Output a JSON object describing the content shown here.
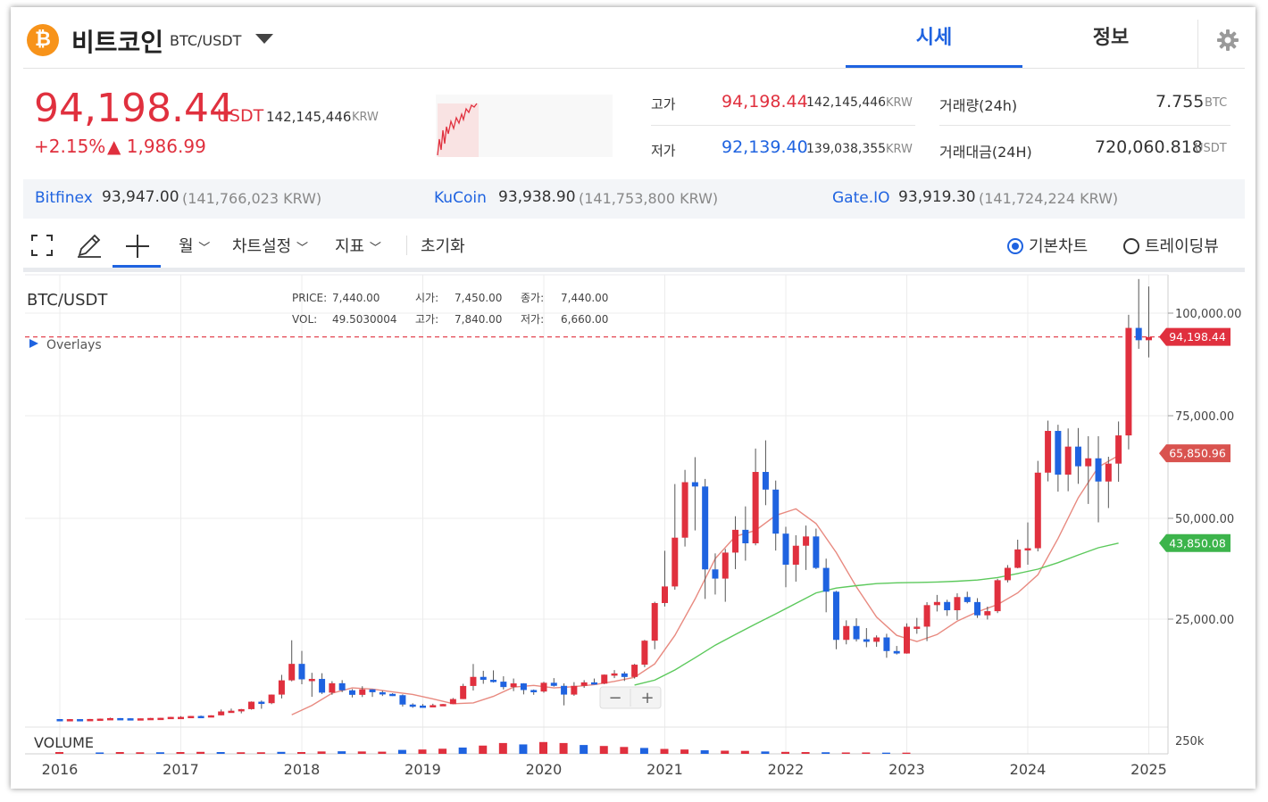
{
  "header": {
    "coin_name": "비트코인",
    "pair": "BTC/USDT",
    "tabs": [
      {
        "label": "시세"
      },
      {
        "label": "정보"
      }
    ]
  },
  "price": {
    "current": "94,198.44",
    "unit": "USDT",
    "krw": "142,145,446",
    "krw_unit": "KRW",
    "change_pct": "+2.15%",
    "change_abs": "▲ 1,986.99"
  },
  "stats": {
    "high_label": "고가",
    "high_value": "94,198.44",
    "high_krw": "142,145,446",
    "low_label": "저가",
    "low_value": "92,139.40",
    "low_krw": "139,038,355",
    "krw_unit": "KRW",
    "volume_label": "거래량(24h)",
    "volume_value": "7.755",
    "volume_unit": "BTC",
    "turnover_label": "거래대금(24H)",
    "turnover_value": "720,060.818",
    "turnover_unit": "USDT"
  },
  "exchanges": [
    {
      "name": "Bitfinex",
      "price": "93,947.00",
      "krw": "(141,766,023 KRW)"
    },
    {
      "name": "KuCoin",
      "price": "93,938.90",
      "krw": "(141,753,800 KRW)"
    },
    {
      "name": "Gate.IO",
      "price": "93,919.30",
      "krw": "(141,724,224 KRW)"
    }
  ],
  "toolbar": {
    "interval": "월",
    "chart_settings": "차트설정",
    "indicators": "지표",
    "reset": "초기화",
    "basic_chart": "기본차트",
    "trading_view": "트레이딩뷰",
    "zoom_out": "−",
    "zoom_in": "+"
  },
  "chart_data": {
    "type": "candlestick",
    "title": "BTC/USDT",
    "overlays_label": "Overlays",
    "volume_label": "VOLUME",
    "info": {
      "price_label": "PRICE:",
      "price": "7,440.00",
      "vol_label": "VOL:",
      "vol": "49.5030004",
      "open_label": "시가:",
      "open": "7,450.00",
      "close_label": "종가:",
      "close": "7,440.00",
      "high_label": "고가:",
      "high": "7,840.00",
      "low_label": "저가:",
      "low": "6,660.00"
    },
    "x_ticks": [
      "2016",
      "2017",
      "2018",
      "2019",
      "2020",
      "2021",
      "2022",
      "2023",
      "2024",
      "2025"
    ],
    "y_ticks": [
      "100,000.00",
      "75,000.00",
      "50,000.00",
      "25,000.00"
    ],
    "y_tick_values": [
      100000,
      75000,
      50000,
      25000
    ],
    "volume_tick": "250k",
    "markers": [
      {
        "label": "94,198.44",
        "value": 94198.44,
        "color": "#e0303e"
      },
      {
        "label": "65,850.96",
        "value": 65850.96,
        "color": "#d9534f"
      },
      {
        "label": "43,850.08",
        "value": 43850.08,
        "color": "#3cb44b"
      }
    ],
    "ma_colors": {
      "short": "#e88a80",
      "long": "#5cc95c"
    },
    "up_color": "#e0303e",
    "down_color": "#1f63e0",
    "year_start_month_offset": 0,
    "start": "2016-01",
    "candles": [
      [
        430,
        370,
        440,
        360
      ],
      [
        370,
        420,
        440,
        350
      ],
      [
        420,
        415,
        440,
        400
      ],
      [
        415,
        450,
        460,
        420
      ],
      [
        450,
        530,
        560,
        440
      ],
      [
        530,
        670,
        780,
        520
      ],
      [
        670,
        625,
        680,
        590
      ],
      [
        625,
        575,
        630,
        550
      ],
      [
        575,
        610,
        620,
        590
      ],
      [
        610,
        700,
        720,
        600
      ],
      [
        700,
        740,
        750,
        680
      ],
      [
        740,
        960,
        980,
        730
      ],
      [
        960,
        965,
        1150,
        750
      ],
      [
        965,
        1190,
        1200,
        940
      ],
      [
        1190,
        1080,
        1290,
        890
      ],
      [
        1080,
        1350,
        1360,
        1060
      ],
      [
        1350,
        2300,
        2780,
        1340
      ],
      [
        2300,
        2480,
        3000,
        2000
      ],
      [
        2480,
        2870,
        2920,
        1840
      ],
      [
        2870,
        4700,
        4770,
        2750
      ],
      [
        4700,
        4340,
        5000,
        2970
      ],
      [
        4340,
        6450,
        6480,
        4100
      ],
      [
        6450,
        9950,
        11300,
        5500
      ],
      [
        9950,
        14000,
        19800,
        9700
      ],
      [
        14000,
        10200,
        17200,
        9000
      ],
      [
        10200,
        10300,
        11800,
        5900
      ],
      [
        10300,
        6930,
        11700,
        6600
      ],
      [
        6930,
        9240,
        9750,
        6400
      ],
      [
        9240,
        7500,
        10000,
        7060
      ],
      [
        7500,
        6390,
        7800,
        5750
      ],
      [
        6390,
        7730,
        8500,
        5850
      ],
      [
        7730,
        7030,
        7750,
        5880
      ],
      [
        7030,
        6630,
        7400,
        6100
      ],
      [
        6630,
        6300,
        6800,
        6100
      ],
      [
        6300,
        4000,
        6500,
        3500
      ],
      [
        4000,
        3740,
        4300,
        3200
      ],
      [
        3740,
        3440,
        4100,
        3350
      ],
      [
        3440,
        3850,
        4200,
        3380
      ],
      [
        3850,
        4110,
        4150,
        3710
      ],
      [
        4110,
        5350,
        5600,
        4100
      ],
      [
        5350,
        8570,
        9100,
        5350
      ],
      [
        8570,
        10800,
        13970,
        7450
      ],
      [
        10800,
        10080,
        12300,
        9100
      ],
      [
        10080,
        9630,
        12400,
        9400
      ],
      [
        9630,
        8300,
        10950,
        7700
      ],
      [
        8300,
        9200,
        10400,
        7300
      ],
      [
        9200,
        7570,
        9250,
        6500
      ],
      [
        7570,
        7200,
        7700,
        6400
      ],
      [
        7200,
        9350,
        9600,
        6900
      ],
      [
        9350,
        8600,
        10500,
        8400
      ],
      [
        8600,
        6450,
        9200,
        3800
      ],
      [
        6450,
        8600,
        9500,
        6150
      ],
      [
        8600,
        9450,
        10000,
        8100
      ],
      [
        9450,
        9140,
        10400,
        8900
      ],
      [
        9140,
        11350,
        11400,
        9000
      ],
      [
        11350,
        11650,
        12470,
        10500
      ],
      [
        11650,
        10780,
        12100,
        9800
      ],
      [
        10780,
        13800,
        14000,
        10400
      ],
      [
        13800,
        19700,
        19900,
        13200
      ],
      [
        19700,
        28990,
        29300,
        17600
      ],
      [
        28990,
        33100,
        41950,
        28130
      ],
      [
        33100,
        45200,
        58350,
        32300
      ],
      [
        45200,
        58800,
        61800,
        43000
      ],
      [
        58800,
        57750,
        64900,
        47000
      ],
      [
        57750,
        37330,
        59600,
        30000
      ],
      [
        37330,
        35050,
        41300,
        31100
      ],
      [
        35050,
        41500,
        42400,
        29300
      ],
      [
        41500,
        47150,
        50500,
        37400
      ],
      [
        47150,
        43800,
        52900,
        39500
      ],
      [
        43800,
        61300,
        67000,
        43300
      ],
      [
        61300,
        57000,
        69000,
        53200
      ],
      [
        57000,
        46200,
        59200,
        42000
      ],
      [
        46200,
        38500,
        47900,
        32900
      ],
      [
        38500,
        43200,
        45800,
        34300
      ],
      [
        43200,
        45500,
        48200,
        37200
      ],
      [
        45500,
        37700,
        47450,
        37400
      ],
      [
        37700,
        31800,
        40000,
        26700
      ],
      [
        31800,
        19900,
        32000,
        17600
      ],
      [
        19900,
        23300,
        24700,
        18800
      ],
      [
        23300,
        20050,
        25200,
        19500
      ],
      [
        20050,
        19430,
        22800,
        18100
      ],
      [
        19430,
        20500,
        21000,
        18200
      ],
      [
        20500,
        17150,
        21400,
        15500
      ],
      [
        17150,
        16550,
        18400,
        16300
      ],
      [
        16550,
        23130,
        23950,
        16500
      ],
      [
        23130,
        23150,
        25300,
        21400
      ],
      [
        23150,
        28470,
        29200,
        19600
      ],
      [
        28470,
        29250,
        31000,
        26900
      ],
      [
        29250,
        27200,
        29800,
        25800
      ],
      [
        27200,
        30470,
        31400,
        24800
      ],
      [
        30470,
        29230,
        31800,
        28900
      ],
      [
        29230,
        25940,
        30200,
        25300
      ],
      [
        25940,
        26970,
        28100,
        24900
      ],
      [
        26970,
        34650,
        35000,
        26500
      ],
      [
        34650,
        37720,
        38400,
        34100
      ],
      [
        37720,
        42280,
        44700,
        37600
      ],
      [
        42280,
        42580,
        48970,
        38500
      ],
      [
        42580,
        61130,
        64000,
        41800
      ],
      [
        61130,
        71300,
        73800,
        59000
      ],
      [
        71300,
        60640,
        72800,
        56500
      ],
      [
        60640,
        67470,
        71900,
        56600
      ],
      [
        67470,
        62680,
        72000,
        58400
      ],
      [
        62680,
        64620,
        70000,
        53500
      ],
      [
        64620,
        58970,
        70000,
        49000
      ],
      [
        58970,
        63330,
        65000,
        52500
      ],
      [
        63330,
        70200,
        73600,
        58900
      ],
      [
        70200,
        96400,
        99600,
        66800
      ],
      [
        96400,
        93400,
        108300,
        91300
      ],
      [
        93400,
        94198,
        106500,
        89200
      ]
    ],
    "ma_short": [
      [
        23,
        1500
      ],
      [
        25,
        3800
      ],
      [
        27,
        6800
      ],
      [
        29,
        8100
      ],
      [
        31,
        7800
      ],
      [
        33,
        7100
      ],
      [
        35,
        6500
      ],
      [
        37,
        5400
      ],
      [
        39,
        4200
      ],
      [
        41,
        4400
      ],
      [
        43,
        6000
      ],
      [
        45,
        8300
      ],
      [
        47,
        8700
      ],
      [
        49,
        8100
      ],
      [
        51,
        8400
      ],
      [
        53,
        8900
      ],
      [
        55,
        9700
      ],
      [
        57,
        10700
      ],
      [
        59,
        14000
      ],
      [
        61,
        21000
      ],
      [
        63,
        30000
      ],
      [
        65,
        40000
      ],
      [
        67,
        45500
      ],
      [
        69,
        47000
      ],
      [
        71,
        50700
      ],
      [
        73,
        52300
      ],
      [
        75,
        48700
      ],
      [
        77,
        41500
      ],
      [
        79,
        33000
      ],
      [
        81,
        25500
      ],
      [
        83,
        21000
      ],
      [
        85,
        19500
      ],
      [
        87,
        21200
      ],
      [
        89,
        24500
      ],
      [
        91,
        26800
      ],
      [
        93,
        28600
      ],
      [
        95,
        31500
      ],
      [
        97,
        36000
      ],
      [
        99,
        45000
      ],
      [
        101,
        55000
      ],
      [
        103,
        62500
      ],
      [
        105,
        65300
      ]
    ],
    "ma_long": [
      [
        57,
        8800
      ],
      [
        59,
        10000
      ],
      [
        61,
        12500
      ],
      [
        63,
        15500
      ],
      [
        65,
        18600
      ],
      [
        67,
        21200
      ],
      [
        69,
        23800
      ],
      [
        71,
        26300
      ],
      [
        73,
        28900
      ],
      [
        75,
        31500
      ],
      [
        77,
        32700
      ],
      [
        79,
        33300
      ],
      [
        81,
        33800
      ],
      [
        83,
        34000
      ],
      [
        85,
        34100
      ],
      [
        87,
        34200
      ],
      [
        89,
        34400
      ],
      [
        91,
        34700
      ],
      [
        93,
        35300
      ],
      [
        95,
        36300
      ],
      [
        97,
        37400
      ],
      [
        99,
        39000
      ],
      [
        101,
        40900
      ],
      [
        103,
        42700
      ],
      [
        105,
        43850
      ]
    ],
    "volume": [
      [
        0,
        9
      ],
      [
        4,
        7
      ],
      [
        6,
        9
      ],
      [
        8,
        8
      ],
      [
        10,
        8
      ],
      [
        12,
        9
      ],
      [
        14,
        10
      ],
      [
        16,
        9
      ],
      [
        18,
        8
      ],
      [
        20,
        8
      ],
      [
        22,
        10
      ],
      [
        24,
        9
      ],
      [
        26,
        12
      ],
      [
        28,
        13
      ],
      [
        30,
        12
      ],
      [
        32,
        11
      ],
      [
        34,
        20
      ],
      [
        36,
        22
      ],
      [
        38,
        26
      ],
      [
        40,
        32
      ],
      [
        42,
        42
      ],
      [
        44,
        55
      ],
      [
        46,
        48
      ],
      [
        48,
        60
      ],
      [
        50,
        55
      ],
      [
        52,
        45
      ],
      [
        54,
        40
      ],
      [
        56,
        35
      ],
      [
        58,
        30
      ],
      [
        60,
        25
      ],
      [
        62,
        22
      ],
      [
        64,
        18
      ],
      [
        66,
        16
      ],
      [
        68,
        15
      ],
      [
        70,
        12
      ],
      [
        72,
        10
      ],
      [
        74,
        9
      ],
      [
        76,
        8
      ],
      [
        78,
        7
      ],
      [
        80,
        7
      ],
      [
        82,
        6
      ],
      [
        84,
        6
      ]
    ]
  }
}
